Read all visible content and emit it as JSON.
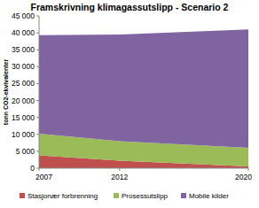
{
  "chart_data": {
    "type": "area",
    "stacked": true,
    "title": "Framskrivning klimagassutslipp - Scenario 2",
    "y_label": "tonn CO2-ekvivalenter",
    "x": [
      2007,
      2012,
      2020
    ],
    "xlim": [
      2007,
      2020
    ],
    "xticks": [
      2007,
      2012,
      2020
    ],
    "ylim": [
      0,
      45000
    ],
    "yticks": [
      0,
      {
        "value": 5000,
        "label": "5 000"
      },
      {
        "value": 10000,
        "label": "10 000"
      },
      {
        "value": 15000,
        "label": "15 000"
      },
      {
        "value": 20000,
        "label": "20 000"
      },
      {
        "value": 25000,
        "label": "25 000"
      },
      {
        "value": 30000,
        "label": "30 000"
      },
      {
        "value": 35000,
        "label": "35 000"
      },
      {
        "value": 40000,
        "label": "40 000"
      },
      {
        "value": 45000,
        "label": "45 000"
      }
    ],
    "grid": false,
    "legend": "bottom",
    "series": [
      {
        "name": "Stasjonær forbrenning",
        "color": "#c0504d",
        "values": [
          3800,
          2200,
          500
        ]
      },
      {
        "name": "Prosessutslipp",
        "color": "#9bbb59",
        "values": [
          6400,
          5800,
          5500
        ]
      },
      {
        "name": "Mobile kilder",
        "color": "#8064a2",
        "values": [
          29100,
          31500,
          35000
        ]
      }
    ]
  }
}
